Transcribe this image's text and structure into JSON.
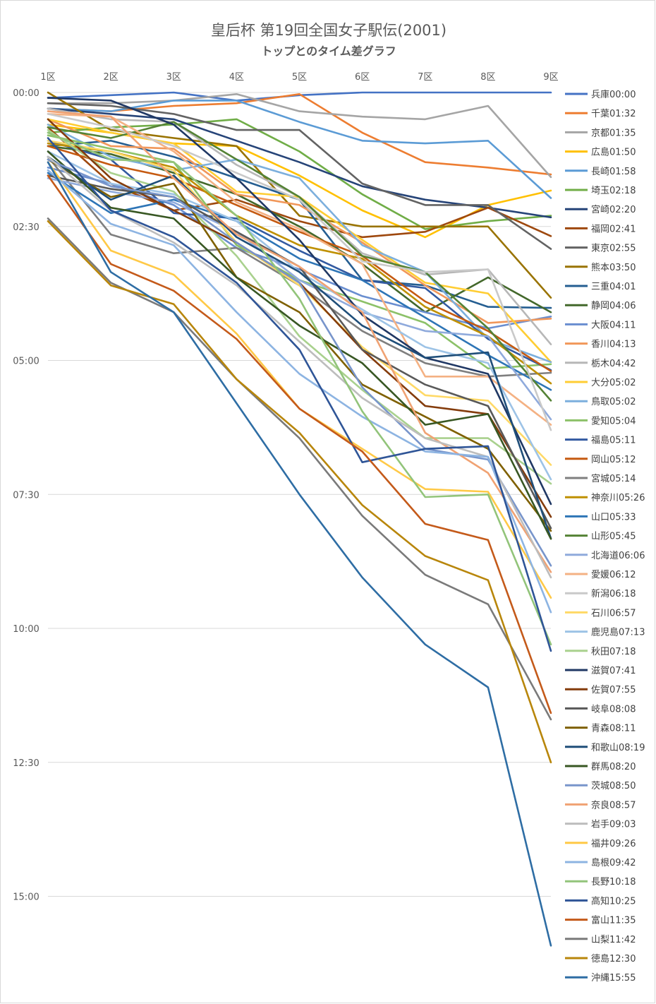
{
  "chart_data": {
    "type": "line",
    "title": "皇后杯 第19回全国女子駅伝(2001)",
    "subtitle": "トップとのタイム差グラフ",
    "xlabel": "",
    "ylabel": "",
    "categories": [
      "1区",
      "2区",
      "3区",
      "4区",
      "5区",
      "6区",
      "7区",
      "8区",
      "9区"
    ],
    "y_unit": "minutes behind leader",
    "ylim": [
      0,
      16
    ],
    "y_reversed": true,
    "y_ticks": [
      {
        "value": 0,
        "label": "00:00"
      },
      {
        "value": 2.5,
        "label": "02:30"
      },
      {
        "value": 5,
        "label": "05:00"
      },
      {
        "value": 7.5,
        "label": "07:30"
      },
      {
        "value": 10,
        "label": "10:00"
      },
      {
        "value": 12.5,
        "label": "12:30"
      },
      {
        "value": 15,
        "label": "15:00"
      }
    ],
    "grid": true,
    "legend_position": "right",
    "series": [
      {
        "name": "兵庫00:00",
        "color": "#4472C4",
        "values": [
          0.1,
          0.05,
          0.0,
          0.15,
          0.05,
          0.0,
          0.0,
          0.0,
          0.0
        ]
      },
      {
        "name": "千葉01:32",
        "color": "#ED7D31",
        "values": [
          0.3,
          0.35,
          0.25,
          0.2,
          0.03,
          0.75,
          1.3,
          1.4,
          1.53
        ]
      },
      {
        "name": "京都01:35",
        "color": "#A5A5A5",
        "values": [
          0.2,
          0.2,
          0.15,
          0.03,
          0.35,
          0.45,
          0.5,
          0.25,
          1.58
        ]
      },
      {
        "name": "広島01:50",
        "color": "#FFC000",
        "values": [
          0.6,
          0.75,
          0.95,
          1.0,
          1.55,
          2.2,
          2.7,
          2.1,
          1.83
        ]
      },
      {
        "name": "長崎01:58",
        "color": "#5B9BD5",
        "values": [
          0.3,
          0.35,
          0.15,
          0.15,
          0.55,
          0.9,
          0.95,
          0.9,
          1.97
        ]
      },
      {
        "name": "埼玉02:18",
        "color": "#70AD47",
        "values": [
          0.75,
          0.65,
          0.6,
          0.5,
          1.1,
          1.9,
          2.55,
          2.4,
          2.3
        ]
      },
      {
        "name": "宮崎02:20",
        "color": "#264478",
        "values": [
          0.3,
          0.4,
          0.5,
          0.9,
          1.3,
          1.75,
          2.0,
          2.15,
          2.33
        ]
      },
      {
        "name": "福岡02:41",
        "color": "#9E480E",
        "values": [
          0.65,
          1.7,
          2.2,
          2.0,
          2.4,
          2.7,
          2.6,
          2.15,
          2.68
        ]
      },
      {
        "name": "東京02:55",
        "color": "#636363",
        "values": [
          0.2,
          0.25,
          0.4,
          0.7,
          0.7,
          1.7,
          2.1,
          2.1,
          2.92
        ]
      },
      {
        "name": "熊本03:50",
        "color": "#997300",
        "values": [
          0.0,
          0.7,
          0.85,
          1.0,
          2.3,
          2.5,
          2.5,
          2.5,
          3.83
        ]
      },
      {
        "name": "三重04:01",
        "color": "#255E91",
        "values": [
          1.0,
          0.9,
          1.2,
          1.6,
          2.0,
          3.5,
          3.6,
          4.0,
          4.02
        ]
      },
      {
        "name": "静岡04:06",
        "color": "#43682B",
        "values": [
          1.0,
          1.15,
          1.5,
          1.9,
          2.5,
          3.2,
          4.1,
          3.45,
          4.1
        ]
      },
      {
        "name": "大阪04:11",
        "color": "#698ED0",
        "values": [
          1.4,
          1.7,
          2.1,
          2.9,
          3.3,
          3.8,
          4.1,
          4.4,
          4.18
        ]
      },
      {
        "name": "香川04:13",
        "color": "#F1975A",
        "values": [
          0.5,
          1.0,
          1.05,
          1.9,
          2.1,
          2.8,
          3.6,
          4.3,
          4.22
        ]
      },
      {
        "name": "栃木04:42",
        "color": "#B7B7B7",
        "values": [
          0.3,
          0.5,
          0.55,
          1.35,
          1.95,
          3.0,
          3.4,
          3.3,
          4.7
        ]
      },
      {
        "name": "大分05:02",
        "color": "#FFCD33",
        "values": [
          0.5,
          0.75,
          0.95,
          1.85,
          1.95,
          2.75,
          3.55,
          3.75,
          5.03
        ]
      },
      {
        "name": "鳥取05:02",
        "color": "#7CAFDD",
        "values": [
          0.6,
          1.2,
          1.45,
          1.25,
          1.6,
          2.85,
          3.35,
          4.6,
          5.03
        ]
      },
      {
        "name": "愛知05:04",
        "color": "#8CC168",
        "values": [
          0.8,
          1.05,
          1.3,
          2.85,
          3.5,
          3.9,
          4.3,
          5.15,
          5.07
        ]
      },
      {
        "name": "福島05:11",
        "color": "#335AA1",
        "values": [
          0.9,
          1.25,
          2.25,
          2.35,
          2.95,
          3.5,
          3.65,
          4.6,
          5.18
        ]
      },
      {
        "name": "岡山05:12",
        "color": "#C55A11",
        "values": [
          1.0,
          1.35,
          1.6,
          2.1,
          2.6,
          3.05,
          3.9,
          4.45,
          5.2
        ]
      },
      {
        "name": "宮城05:14",
        "color": "#7F7F7F",
        "values": [
          1.2,
          2.65,
          3.0,
          2.9,
          3.6,
          4.45,
          5.05,
          5.3,
          5.23
        ]
      },
      {
        "name": "神奈川05:26",
        "color": "#BF9000",
        "values": [
          0.95,
          1.1,
          1.4,
          2.3,
          2.85,
          3.1,
          4.0,
          4.55,
          5.43
        ]
      },
      {
        "name": "山口05:33",
        "color": "#2E75B6",
        "values": [
          1.5,
          2.25,
          2.0,
          2.4,
          3.1,
          3.5,
          4.2,
          4.9,
          5.55
        ]
      },
      {
        "name": "山形05:45",
        "color": "#548235",
        "values": [
          0.65,
          0.85,
          0.55,
          1.25,
          1.95,
          3.05,
          3.35,
          4.4,
          5.75
        ]
      },
      {
        "name": "北海道06:06",
        "color": "#8FAADC",
        "values": [
          1.6,
          1.85,
          2.05,
          2.6,
          3.5,
          4.1,
          4.45,
          4.55,
          6.1
        ]
      },
      {
        "name": "愛媛06:12",
        "color": "#F4B183",
        "values": [
          0.4,
          0.45,
          1.1,
          2.05,
          2.55,
          3.2,
          5.3,
          5.3,
          6.2
        ]
      },
      {
        "name": "新潟06:18",
        "color": "#C9C9C9",
        "values": [
          0.4,
          0.65,
          1.0,
          1.5,
          2.0,
          3.15,
          3.35,
          3.3,
          6.3
        ]
      },
      {
        "name": "石川06:57",
        "color": "#FFD966",
        "values": [
          0.9,
          1.1,
          1.45,
          2.8,
          3.6,
          4.75,
          5.65,
          5.75,
          6.95
        ]
      },
      {
        "name": "鹿児島07:13",
        "color": "#9DC3E6",
        "values": [
          1.1,
          1.7,
          1.9,
          2.4,
          3.35,
          4.05,
          4.75,
          5.05,
          7.22
        ]
      },
      {
        "name": "秋田07:18",
        "color": "#A9D18E",
        "values": [
          0.7,
          1.5,
          1.85,
          3.05,
          4.55,
          5.55,
          6.45,
          6.45,
          7.3
        ]
      },
      {
        "name": "滋賀07:41",
        "color": "#203864",
        "values": [
          0.1,
          0.15,
          0.6,
          1.6,
          2.75,
          4.15,
          4.95,
          5.25,
          7.68
        ]
      },
      {
        "name": "佐賀07:55",
        "color": "#843C0C",
        "values": [
          0.5,
          1.6,
          2.2,
          2.8,
          3.55,
          4.8,
          5.85,
          6.0,
          7.92
        ]
      },
      {
        "name": "岐阜08:08",
        "color": "#595959",
        "values": [
          1.55,
          1.8,
          1.95,
          2.6,
          3.25,
          4.8,
          5.45,
          5.85,
          8.13
        ]
      },
      {
        "name": "青森08:11",
        "color": "#7F6000",
        "values": [
          1.25,
          1.95,
          1.7,
          3.45,
          4.1,
          5.45,
          6.05,
          6.65,
          8.18
        ]
      },
      {
        "name": "和歌山08:19",
        "color": "#1F4E79",
        "values": [
          1.2,
          2.0,
          1.55,
          2.7,
          3.35,
          4.35,
          4.95,
          4.85,
          8.32
        ]
      },
      {
        "name": "群馬08:20",
        "color": "#385723",
        "values": [
          1.1,
          2.15,
          2.35,
          3.45,
          4.35,
          5.05,
          6.2,
          6.0,
          8.33
        ]
      },
      {
        "name": "茨城08:50",
        "color": "#7895CB",
        "values": [
          1.25,
          1.75,
          1.95,
          2.8,
          3.55,
          5.5,
          6.65,
          6.85,
          8.83
        ]
      },
      {
        "name": "奈良08:57",
        "color": "#F0A273",
        "values": [
          0.35,
          0.45,
          1.6,
          2.65,
          3.25,
          4.1,
          6.35,
          7.1,
          8.95
        ]
      },
      {
        "name": "岩手09:03",
        "color": "#BDBDBD",
        "values": [
          1.2,
          2.2,
          2.8,
          3.6,
          4.65,
          5.7,
          6.45,
          6.8,
          9.05
        ]
      },
      {
        "name": "福井09:26",
        "color": "#FFC947",
        "values": [
          1.3,
          2.95,
          3.4,
          4.5,
          5.9,
          6.65,
          7.4,
          7.45,
          9.43
        ]
      },
      {
        "name": "島根09:42",
        "color": "#8DB4E2",
        "values": [
          1.45,
          2.45,
          2.85,
          4.1,
          5.25,
          6.05,
          6.7,
          6.8,
          9.7
        ]
      },
      {
        "name": "長野10:18",
        "color": "#92C47A",
        "values": [
          0.75,
          1.25,
          1.3,
          2.3,
          3.85,
          5.95,
          7.55,
          7.5,
          10.3
        ]
      },
      {
        "name": "高知10:25",
        "color": "#2F5597",
        "values": [
          0.85,
          2.2,
          2.7,
          3.55,
          4.8,
          6.9,
          6.65,
          6.6,
          10.42
        ]
      },
      {
        "name": "富山11:35",
        "color": "#C45A1A",
        "values": [
          1.55,
          3.2,
          3.7,
          4.6,
          5.9,
          6.7,
          8.05,
          8.35,
          11.58
        ]
      },
      {
        "name": "山梨11:42",
        "color": "#7A7A7A",
        "values": [
          2.35,
          3.55,
          4.1,
          5.35,
          6.45,
          7.9,
          9.0,
          9.55,
          11.7
        ]
      },
      {
        "name": "徳島12:30",
        "color": "#B8860B",
        "values": [
          2.4,
          3.6,
          3.95,
          5.35,
          6.35,
          7.7,
          8.65,
          9.1,
          12.5
        ]
      },
      {
        "name": "沖縄15:55",
        "color": "#2E6DA4",
        "values": [
          1.3,
          3.35,
          4.1,
          5.8,
          7.5,
          9.05,
          10.3,
          11.1,
          15.92
        ]
      }
    ]
  }
}
